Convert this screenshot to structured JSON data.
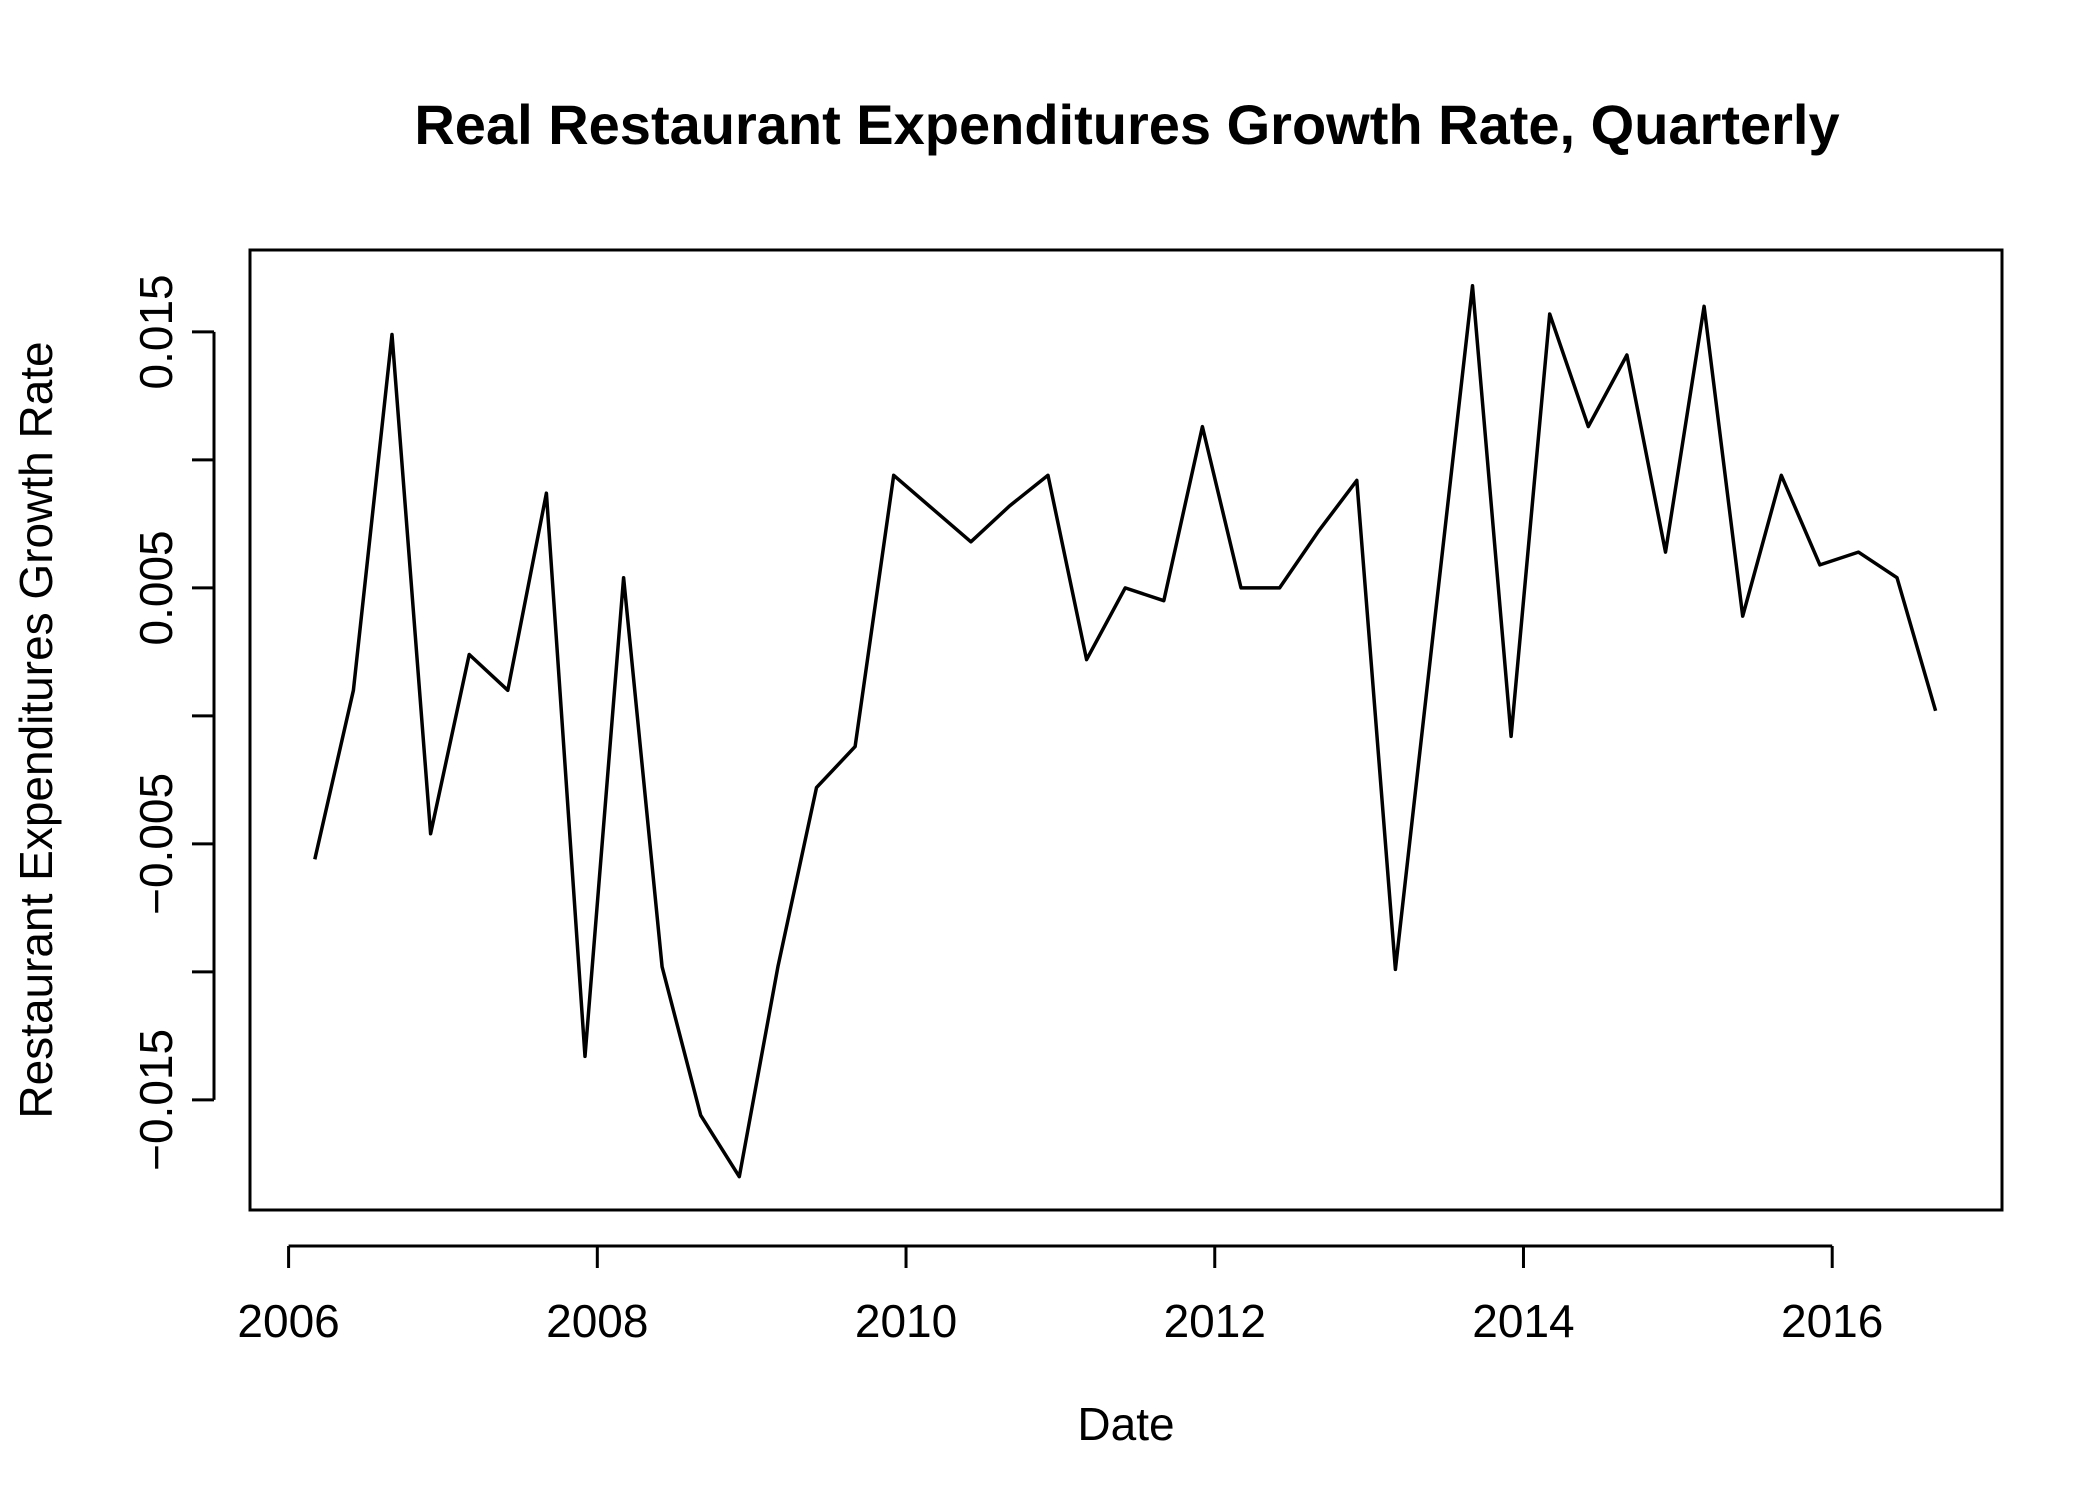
{
  "chart_data": {
    "type": "line",
    "title": "Real Restaurant Expenditures Growth Rate, Quarterly",
    "xlabel": "Date",
    "ylabel": "Restaurant Expenditures Growth Rate",
    "xlim": [
      2005.75,
      2017.1
    ],
    "ylim": [
      -0.0193,
      0.0182
    ],
    "x_ticks": [
      2006,
      2008,
      2010,
      2012,
      2014,
      2016
    ],
    "x_tick_labels": [
      "2006",
      "2008",
      "2010",
      "2012",
      "2014",
      "2016"
    ],
    "y_ticks": [
      -0.015,
      -0.01,
      -0.005,
      0.0,
      0.005,
      0.01,
      0.015
    ],
    "y_tick_labels": [
      "−0.015",
      "",
      "−0.005",
      "",
      "0.005",
      "",
      "0.015"
    ],
    "grid": false,
    "series": [
      {
        "x": [
          2006.17,
          2006.42,
          2006.67,
          2006.92,
          2007.17,
          2007.42,
          2007.67,
          2007.92,
          2008.17,
          2008.42,
          2008.67,
          2008.92,
          2009.17,
          2009.42,
          2009.67,
          2009.92,
          2010.17,
          2010.42,
          2010.67,
          2010.92,
          2011.17,
          2011.42,
          2011.67,
          2011.92,
          2012.17,
          2012.42,
          2012.67,
          2012.92,
          2013.17,
          2013.42,
          2013.67,
          2013.92,
          2014.17,
          2014.42,
          2014.67,
          2014.92,
          2015.17,
          2015.42,
          2015.67,
          2015.92,
          2016.17,
          2016.42,
          2016.67
        ],
        "y": [
          -0.0056,
          0.001,
          0.0149,
          -0.0046,
          0.0024,
          0.001,
          0.0087,
          -0.0133,
          0.0054,
          -0.0098,
          -0.0156,
          -0.018,
          -0.0098,
          -0.0028,
          -0.0012,
          0.0094,
          0.0081,
          0.0068,
          0.0082,
          0.0094,
          0.0022,
          0.005,
          0.0045,
          0.0113,
          0.005,
          0.005,
          0.0072,
          0.0092,
          -0.0099,
          0.0035,
          0.0168,
          -0.0008,
          0.0157,
          0.0113,
          0.0141,
          0.0064,
          0.016,
          0.0039,
          0.0094,
          0.0059,
          0.0064,
          0.0054,
          0.0002
        ]
      }
    ]
  }
}
